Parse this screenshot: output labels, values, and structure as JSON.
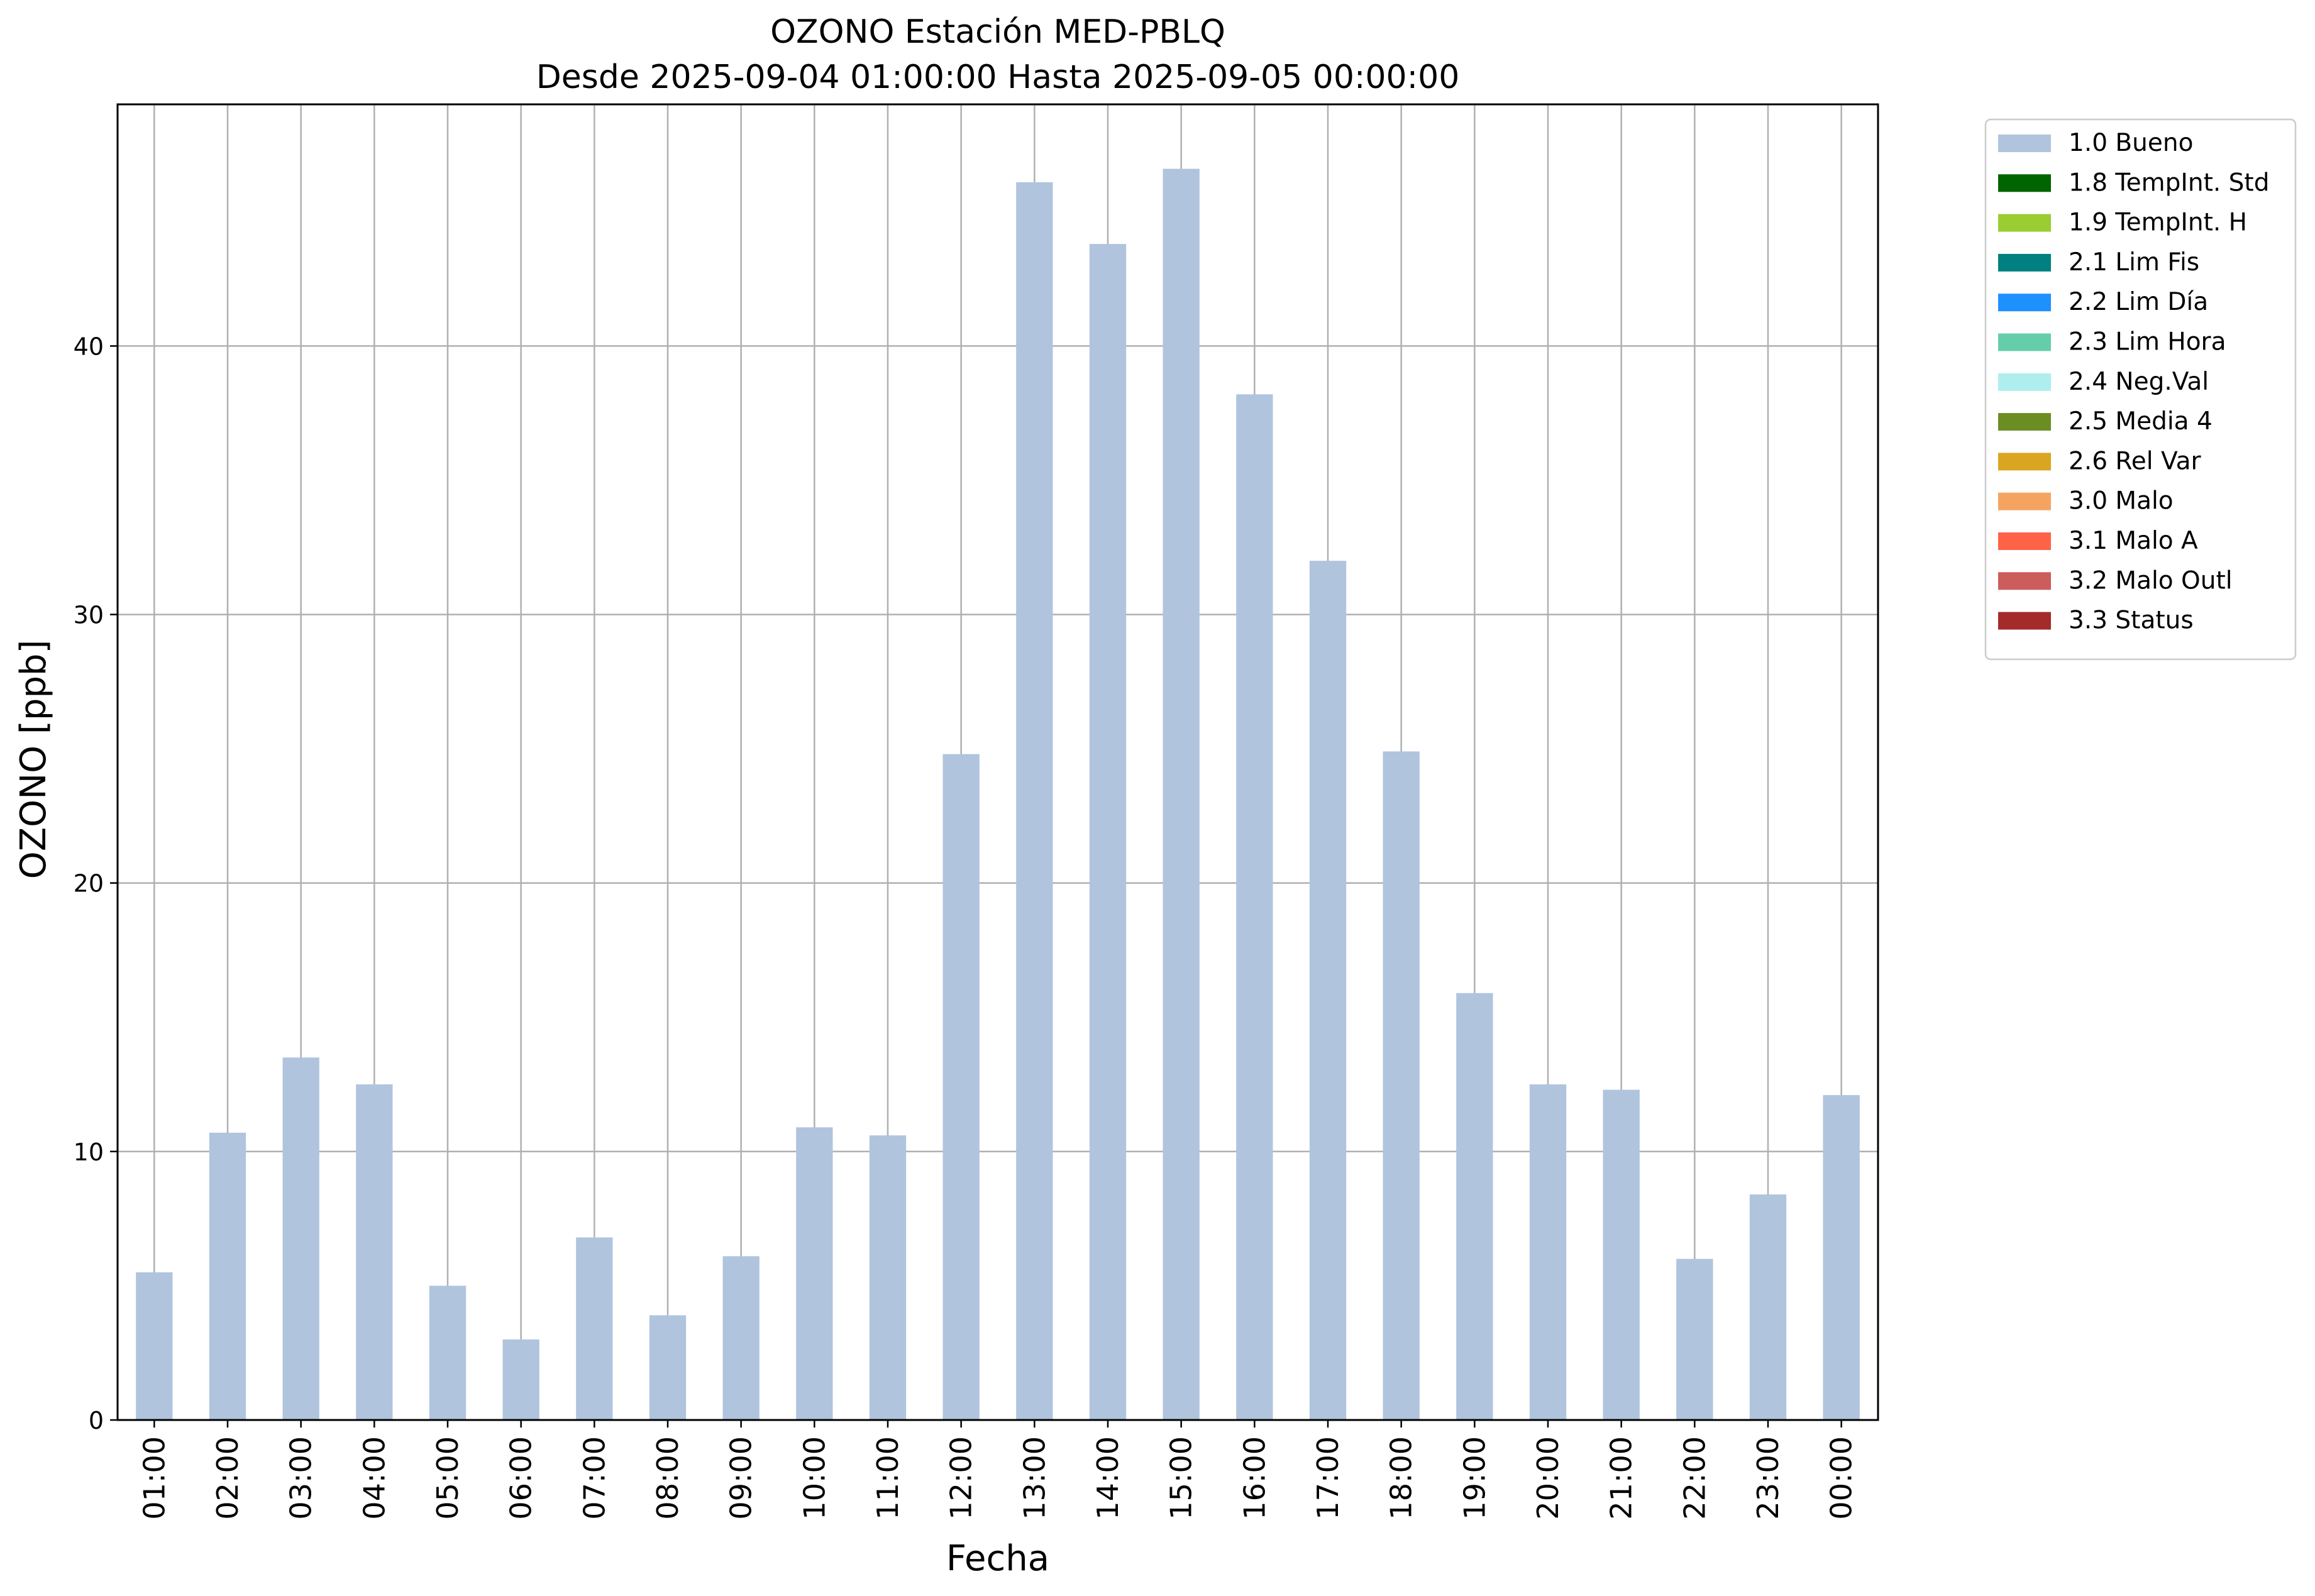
{
  "chart_data": {
    "type": "bar",
    "title": "OZONO Estación MED-PBLQ",
    "subtitle": "Desde 2025-09-04 01:00:00 Hasta 2025-09-05 00:00:00",
    "xlabel": "Fecha",
    "ylabel": "OZONO [ppb]",
    "ylim": [
      0,
      49
    ],
    "yticks": [
      0,
      10,
      20,
      30,
      40
    ],
    "grid": true,
    "legend_position": "outside-top-right",
    "categories": [
      "01:00",
      "02:00",
      "03:00",
      "04:00",
      "05:00",
      "06:00",
      "07:00",
      "08:00",
      "09:00",
      "10:00",
      "11:00",
      "12:00",
      "13:00",
      "14:00",
      "15:00",
      "16:00",
      "17:00",
      "18:00",
      "19:00",
      "20:00",
      "21:00",
      "22:00",
      "23:00",
      "00:00"
    ],
    "series": [
      {
        "name": "1.0 Bueno",
        "color": "#b0c4de",
        "values": [
          5.5,
          10.7,
          13.5,
          12.5,
          5.0,
          3.0,
          6.8,
          3.9,
          6.1,
          10.9,
          10.6,
          24.8,
          46.1,
          43.8,
          46.6,
          38.2,
          32.0,
          24.9,
          15.9,
          12.5,
          12.3,
          6.0,
          8.4,
          12.1
        ]
      }
    ],
    "legend": [
      {
        "label": "1.0 Bueno",
        "color": "#b0c4de"
      },
      {
        "label": "1.8 TempInt. Std",
        "color": "#006400"
      },
      {
        "label": "1.9 TempInt. H",
        "color": "#9acd32"
      },
      {
        "label": "2.1 Lim Fis",
        "color": "#008080"
      },
      {
        "label": "2.2 Lim Día",
        "color": "#1e90ff"
      },
      {
        "label": "2.3 Lim Hora",
        "color": "#66cdaa"
      },
      {
        "label": "2.4 Neg.Val",
        "color": "#afeeee"
      },
      {
        "label": "2.5 Media 4",
        "color": "#6b8e23"
      },
      {
        "label": "2.6 Rel Var",
        "color": "#daa520"
      },
      {
        "label": "3.0 Malo",
        "color": "#f4a460"
      },
      {
        "label": "3.1 Malo A",
        "color": "#ff6347"
      },
      {
        "label": "3.2 Malo Outl",
        "color": "#cd5c5c"
      },
      {
        "label": "3.3 Status",
        "color": "#a52a2a"
      }
    ]
  }
}
